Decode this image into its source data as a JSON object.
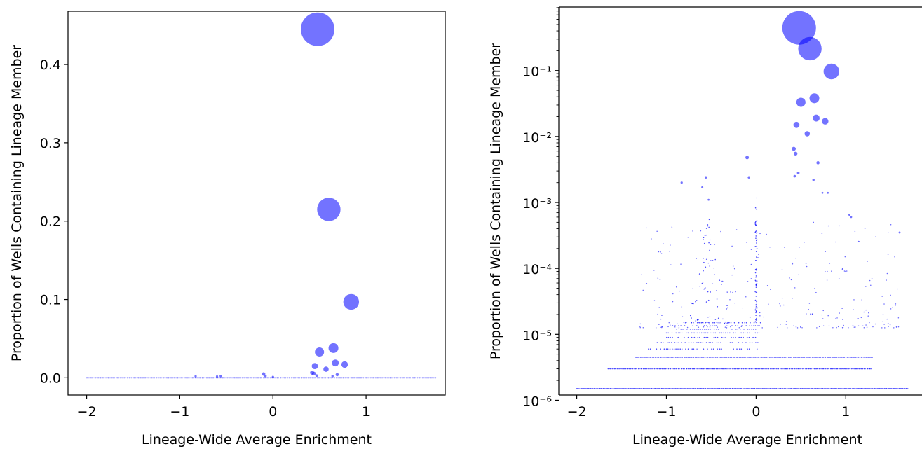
{
  "chart_data": [
    {
      "type": "scatter",
      "title": "",
      "xlabel": "Lineage-Wide Average Enrichment",
      "ylabel": "Proportion of Wells Containing Lineage Member",
      "xlim": [
        -2.2,
        1.85
      ],
      "ylim": [
        -0.022,
        0.468
      ],
      "yscale": "linear",
      "x_ticks": [
        -2,
        -1,
        0,
        1
      ],
      "x_tick_labels": [
        "−2",
        "−1",
        "0",
        "1"
      ],
      "y_ticks": [
        0.0,
        0.1,
        0.2,
        0.3,
        0.4
      ],
      "y_tick_labels": [
        "0.0",
        "0.1",
        "0.2",
        "0.3",
        "0.4"
      ],
      "grid": false,
      "color": "#0000ff",
      "opacity": 0.55,
      "marker_size": "proportional to y value",
      "points": [
        {
          "x": 0.48,
          "y": 0.445
        },
        {
          "x": 0.6,
          "y": 0.215
        },
        {
          "x": 0.84,
          "y": 0.097
        },
        {
          "x": 0.65,
          "y": 0.038
        },
        {
          "x": 0.5,
          "y": 0.033
        },
        {
          "x": 0.67,
          "y": 0.019
        },
        {
          "x": 0.77,
          "y": 0.017
        },
        {
          "x": 0.45,
          "y": 0.015
        },
        {
          "x": 0.57,
          "y": 0.011
        },
        {
          "x": 0.42,
          "y": 0.0065
        },
        {
          "x": 0.44,
          "y": 0.0055
        },
        {
          "x": -0.1,
          "y": 0.0048
        },
        {
          "x": 0.69,
          "y": 0.004
        },
        {
          "x": -0.08,
          "y": 0.0024
        },
        {
          "x": 0.47,
          "y": 0.0028
        },
        {
          "x": -0.83,
          "y": 0.002
        },
        {
          "x": -0.56,
          "y": 0.0024
        },
        {
          "x": 0.64,
          "y": 0.0022
        },
        {
          "x": 0.0,
          "y": 0.0012
        },
        {
          "x": -0.6,
          "y": 0.0017
        }
      ],
      "baseline_band": {
        "x_range": [
          -2.0,
          1.75
        ],
        "y": 0.0
      }
    },
    {
      "type": "scatter",
      "title": "",
      "xlabel": "Lineage-Wide Average Enrichment",
      "ylabel": "Proportion of Wells Containing Lineage Member",
      "xlim": [
        -2.2,
        1.85
      ],
      "ylim": [
        1.2e-06,
        0.92
      ],
      "yscale": "log",
      "x_ticks": [
        -2,
        -1,
        0,
        1
      ],
      "x_tick_labels": [
        "−2",
        "−1",
        "0",
        "1"
      ],
      "y_ticks": [
        1e-06,
        1e-05,
        0.0001,
        0.001,
        0.01,
        0.1
      ],
      "y_tick_labels": [
        "10⁻⁶",
        "10⁻⁵",
        "10⁻⁴",
        "10⁻³",
        "10⁻²",
        "10⁻¹"
      ],
      "grid": false,
      "color": "#0000ff",
      "opacity": 0.55,
      "marker_size": "proportional to y value",
      "points": [
        {
          "x": 0.48,
          "y": 0.445
        },
        {
          "x": 0.6,
          "y": 0.215
        },
        {
          "x": 0.84,
          "y": 0.097
        },
        {
          "x": 0.65,
          "y": 0.038
        },
        {
          "x": 0.5,
          "y": 0.033
        },
        {
          "x": 0.67,
          "y": 0.019
        },
        {
          "x": 0.77,
          "y": 0.017
        },
        {
          "x": 0.45,
          "y": 0.015
        },
        {
          "x": 0.57,
          "y": 0.011
        },
        {
          "x": 0.42,
          "y": 0.0065
        },
        {
          "x": 0.44,
          "y": 0.0055
        },
        {
          "x": -0.1,
          "y": 0.0048
        },
        {
          "x": 0.69,
          "y": 0.004
        },
        {
          "x": 0.47,
          "y": 0.0028
        },
        {
          "x": -0.08,
          "y": 0.0024
        },
        {
          "x": -0.56,
          "y": 0.0024
        },
        {
          "x": 0.43,
          "y": 0.0025
        },
        {
          "x": 0.64,
          "y": 0.0022
        },
        {
          "x": -0.83,
          "y": 0.002
        },
        {
          "x": -0.6,
          "y": 0.0017
        },
        {
          "x": 0.74,
          "y": 0.0014
        },
        {
          "x": 0.8,
          "y": 0.0014
        },
        {
          "x": -0.53,
          "y": 0.0011
        },
        {
          "x": 1.04,
          "y": 0.00065
        },
        {
          "x": 1.06,
          "y": 0.0006
        },
        {
          "x": 1.6,
          "y": 0.00035
        }
      ],
      "discrete_levels": [
        1.5e-06,
        3e-06,
        4.5e-06,
        6e-06,
        7.5e-06,
        9e-06,
        1.05e-05,
        1.2e-05,
        1.35e-05,
        1.5e-05
      ],
      "level_ranges": [
        [
          -2.0,
          1.7
        ],
        [
          -1.65,
          1.3
        ],
        [
          -1.35,
          1.3
        ],
        [
          -1.2,
          0.05
        ],
        [
          -1.1,
          0.05
        ],
        [
          -1.0,
          0.05
        ],
        [
          -1.0,
          0.05
        ],
        [
          -0.95,
          0.05
        ],
        [
          -0.95,
          0.05
        ],
        [
          -0.9,
          0.05
        ]
      ],
      "column_clusters": [
        {
          "x": -0.53,
          "y_range": [
            1.5e-05,
            0.0006
          ]
        },
        {
          "x": 0.0,
          "y_range": [
            1.5e-05,
            0.0012
          ]
        }
      ]
    }
  ]
}
